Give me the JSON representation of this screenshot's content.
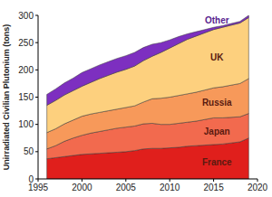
{
  "chart_data": {
    "type": "area",
    "stacked": true,
    "y_label": "Unirradiated Civilian Plutonium (tons)",
    "x": [
      1996,
      1997,
      1998,
      1999,
      2000,
      2001,
      2002,
      2003,
      2004,
      2005,
      2006,
      2007,
      2008,
      2009,
      2010,
      2011,
      2012,
      2013,
      2014,
      2015,
      2016,
      2017,
      2018,
      2019
    ],
    "series": [
      {
        "name": "France",
        "color": "#e01f1c",
        "values": [
          37,
          39,
          41,
          43,
          45,
          46,
          47,
          48,
          49,
          50,
          52,
          55,
          56,
          56,
          57,
          58,
          60,
          61,
          62,
          63,
          64,
          66,
          68,
          75
        ]
      },
      {
        "name": "Japan",
        "color": "#f26a4e",
        "values": [
          18,
          22,
          28,
          32,
          35,
          38,
          40,
          42,
          44,
          45,
          45,
          46,
          46,
          44,
          43,
          44,
          44,
          45,
          47,
          49,
          48,
          47,
          46,
          45
        ]
      },
      {
        "name": "Russia",
        "color": "#f7995a",
        "values": [
          30,
          31,
          32,
          33,
          35,
          35,
          35,
          35,
          35,
          36,
          37,
          40,
          45,
          48,
          50,
          51,
          52,
          53,
          54,
          55,
          57,
          59,
          61,
          64
        ]
      },
      {
        "name": "UK",
        "color": "#fdd07e",
        "values": [
          50,
          52,
          53,
          54,
          55,
          58,
          62,
          65,
          68,
          70,
          73,
          76,
          78,
          84,
          90,
          95,
          100,
          103,
          105,
          107,
          109,
          110,
          111,
          112
        ]
      },
      {
        "name": "Other",
        "color": "#7d2fc0",
        "values": [
          20,
          21,
          22,
          23,
          25,
          25,
          25,
          25,
          25,
          25,
          25,
          24,
          22,
          18,
          15,
          13,
          10,
          8,
          6,
          4,
          3,
          3,
          3,
          4
        ]
      }
    ],
    "xlim": [
      1995,
      2020
    ],
    "xticks": [
      1995,
      2000,
      2005,
      2010,
      2015,
      2020
    ],
    "ylim": [
      0,
      300
    ],
    "yticks": [
      0,
      50,
      100,
      150,
      200,
      250,
      300
    ],
    "grid": false
  }
}
